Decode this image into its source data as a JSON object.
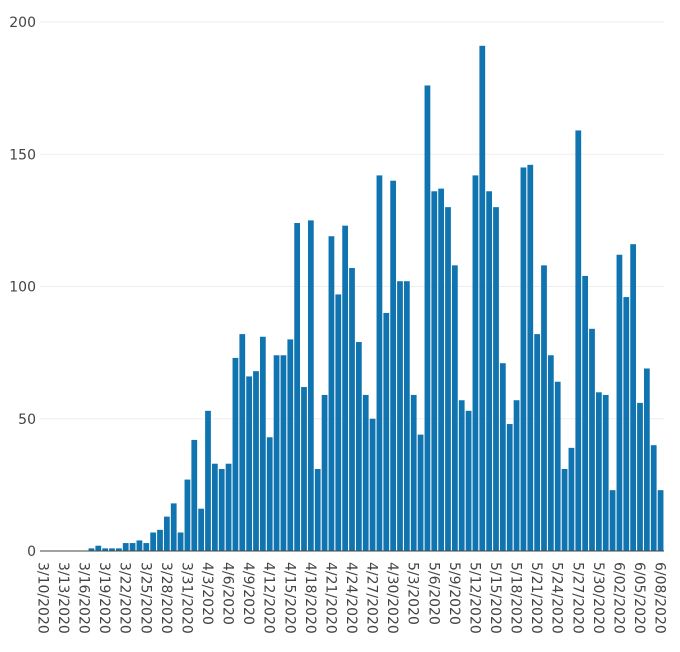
{
  "chart_data": {
    "type": "bar",
    "color": "#0f74b0",
    "grid": true,
    "ylim": [
      0,
      200
    ],
    "yticks": [
      0,
      50,
      100,
      150,
      200
    ],
    "categories": [
      "3/10/2020",
      null,
      null,
      "3/13/2020",
      null,
      null,
      "3/16/2020",
      null,
      null,
      "3/19/2020",
      null,
      null,
      "3/22/2020",
      null,
      null,
      "3/25/2020",
      null,
      null,
      "3/28/2020",
      null,
      null,
      "3/31/2020",
      null,
      null,
      "4/3/2020",
      null,
      null,
      "4/6/2020",
      null,
      null,
      "4/9/2020",
      null,
      null,
      "4/12/2020",
      null,
      null,
      "4/15/2020",
      null,
      null,
      "4/18/2020",
      null,
      null,
      "4/21/2020",
      null,
      null,
      "4/24/2020",
      null,
      null,
      "4/27/2020",
      null,
      null,
      "4/30/2020",
      null,
      null,
      "5/3/2020",
      null,
      null,
      "5/6/2020",
      null,
      null,
      "5/9/2020",
      null,
      null,
      "5/12/2020",
      null,
      null,
      "5/15/2020",
      null,
      null,
      "5/18/2020",
      null,
      null,
      "5/21/2020",
      null,
      null,
      "5/24/2020",
      null,
      null,
      "5/27/2020",
      null,
      null,
      "5/30/2020",
      null,
      null,
      "6/02/2020",
      null,
      null,
      "6/05/2020",
      null,
      null,
      "6/08/2020"
    ],
    "values": [
      0,
      0,
      0,
      0,
      0,
      0,
      0,
      1,
      2,
      1,
      1,
      1,
      3,
      3,
      4,
      3,
      7,
      8,
      13,
      18,
      7,
      27,
      42,
      16,
      53,
      33,
      31,
      33,
      73,
      82,
      66,
      68,
      81,
      43,
      74,
      74,
      80,
      124,
      62,
      125,
      31,
      59,
      119,
      97,
      123,
      107,
      79,
      59,
      50,
      142,
      90,
      140,
      102,
      102,
      59,
      44,
      176,
      136,
      137,
      130,
      108,
      57,
      53,
      142,
      191,
      136,
      130,
      71,
      48,
      57,
      145,
      146,
      82,
      108,
      74,
      64,
      31,
      39,
      159,
      104,
      84,
      60,
      59,
      23,
      112,
      96,
      116,
      56,
      69,
      40,
      23
    ]
  }
}
